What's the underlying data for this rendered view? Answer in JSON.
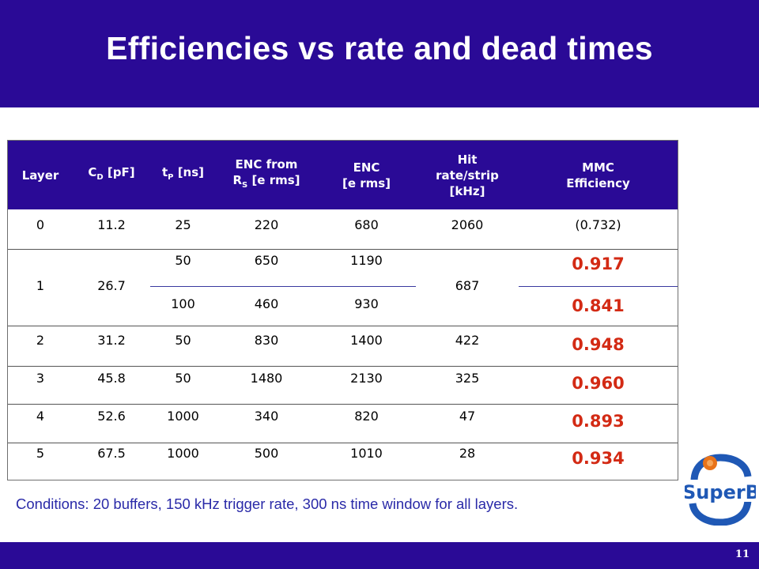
{
  "title": "Efficiencies vs rate and dead times",
  "table": {
    "headers": {
      "layer": "Layer",
      "cd": "C",
      "cd_sub": "D",
      "cd_unit": " [pF]",
      "tp": "t",
      "tp_sub": "P",
      "tp_unit": " [ns]",
      "enc_from_pre": "ENC from R",
      "enc_from_sub": "S",
      "enc_from_post": " [e rms]",
      "enc_line1": "ENC",
      "enc_line2": "[e rms]",
      "hit_line1": "Hit",
      "hit_line2": "rate/strip",
      "hit_line3": "[kHz]",
      "mmc_line1": "MMC",
      "mmc_line2": "Efficiency"
    },
    "rows": [
      {
        "layer": "0",
        "cd": "11.2",
        "tp": "25",
        "enc_rs": "220",
        "enc": "680",
        "hit": "2060",
        "eff": "(0.732)"
      },
      {
        "layer": "1",
        "cd": "26.7",
        "tp": "50",
        "enc_rs": "650",
        "enc": "1190",
        "hit": "687",
        "eff": "0.917"
      },
      {
        "layer": "",
        "cd": "",
        "tp": "100",
        "enc_rs": "460",
        "enc": "930",
        "hit": "",
        "eff": "0.841"
      },
      {
        "layer": "2",
        "cd": "31.2",
        "tp": "50",
        "enc_rs": "830",
        "enc": "1400",
        "hit": "422",
        "eff": "0.948"
      },
      {
        "layer": "3",
        "cd": "45.8",
        "tp": "50",
        "enc_rs": "1480",
        "enc": "2130",
        "hit": "325",
        "eff": "0.960"
      },
      {
        "layer": "4",
        "cd": "52.6",
        "tp": "1000",
        "enc_rs": "340",
        "enc": "820",
        "hit": "47",
        "eff": "0.893"
      },
      {
        "layer": "5",
        "cd": "67.5",
        "tp": "1000",
        "enc_rs": "500",
        "enc": "1010",
        "hit": "28",
        "eff": "0.934"
      }
    ]
  },
  "conditions": "Conditions: 20 buffers, 150 kHz trigger rate, 300 ns time window for all layers.",
  "logo_text": "SuperB",
  "page_number": "11",
  "colors": {
    "header_bg": "#2a0a96",
    "efficiency_red": "#d32a14",
    "conditions_text": "#2a2aa8",
    "logo_blue": "#1f58b5",
    "logo_orange": "#e8731a"
  }
}
